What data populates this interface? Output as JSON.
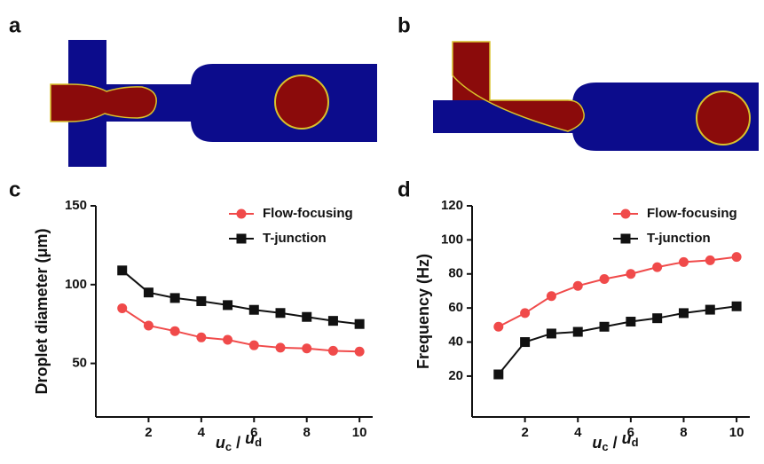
{
  "diagrams": [
    {
      "panel": "a"
    },
    {
      "panel": "b"
    }
  ],
  "chart_data": [
    {
      "type": "line",
      "panel": "c",
      "y_label": "Droplet diameter (μm)",
      "x_label": [
        "u",
        "c",
        " / ",
        "u",
        "d"
      ],
      "x": [
        1,
        2,
        3,
        4,
        5,
        6,
        7,
        8,
        9,
        10
      ],
      "xlim": [
        0,
        10.5
      ],
      "xticks": [
        2,
        4,
        6,
        8,
        10
      ],
      "ylim": [
        16,
        150
      ],
      "yticks": [
        50,
        100,
        150
      ],
      "grid": false,
      "legend": "top-right",
      "series": [
        {
          "name": "Flow-focusing",
          "color": "#f04a4a",
          "marker": "circle",
          "values": [
            85,
            74,
            70.5,
            66.5,
            65,
            61.5,
            60,
            59.5,
            58,
            57.5
          ]
        },
        {
          "name": "T-junction",
          "color": "#111111",
          "marker": "square",
          "values": [
            109,
            95,
            91.5,
            89.5,
            87,
            84,
            82,
            79.5,
            77,
            75
          ]
        }
      ]
    },
    {
      "type": "line",
      "panel": "d",
      "y_label": "Frequency (Hz)",
      "x_label": [
        "u",
        "c",
        " / ",
        "u",
        "d"
      ],
      "x": [
        1,
        2,
        3,
        4,
        5,
        6,
        7,
        8,
        9,
        10
      ],
      "xlim": [
        0,
        10.5
      ],
      "xticks": [
        2,
        4,
        6,
        8,
        10
      ],
      "ylim": [
        -4,
        120
      ],
      "yticks": [
        20,
        40,
        60,
        80,
        100,
        120
      ],
      "grid": false,
      "legend": "top-right",
      "series": [
        {
          "name": "Flow-focusing",
          "color": "#f04a4a",
          "marker": "circle",
          "values": [
            49,
            57,
            67,
            73,
            77,
            80,
            84,
            87,
            88,
            90
          ]
        },
        {
          "name": "T-junction",
          "color": "#111111",
          "marker": "square",
          "values": [
            21,
            40,
            45,
            46,
            49,
            52,
            54,
            57,
            59,
            61
          ]
        }
      ]
    }
  ]
}
